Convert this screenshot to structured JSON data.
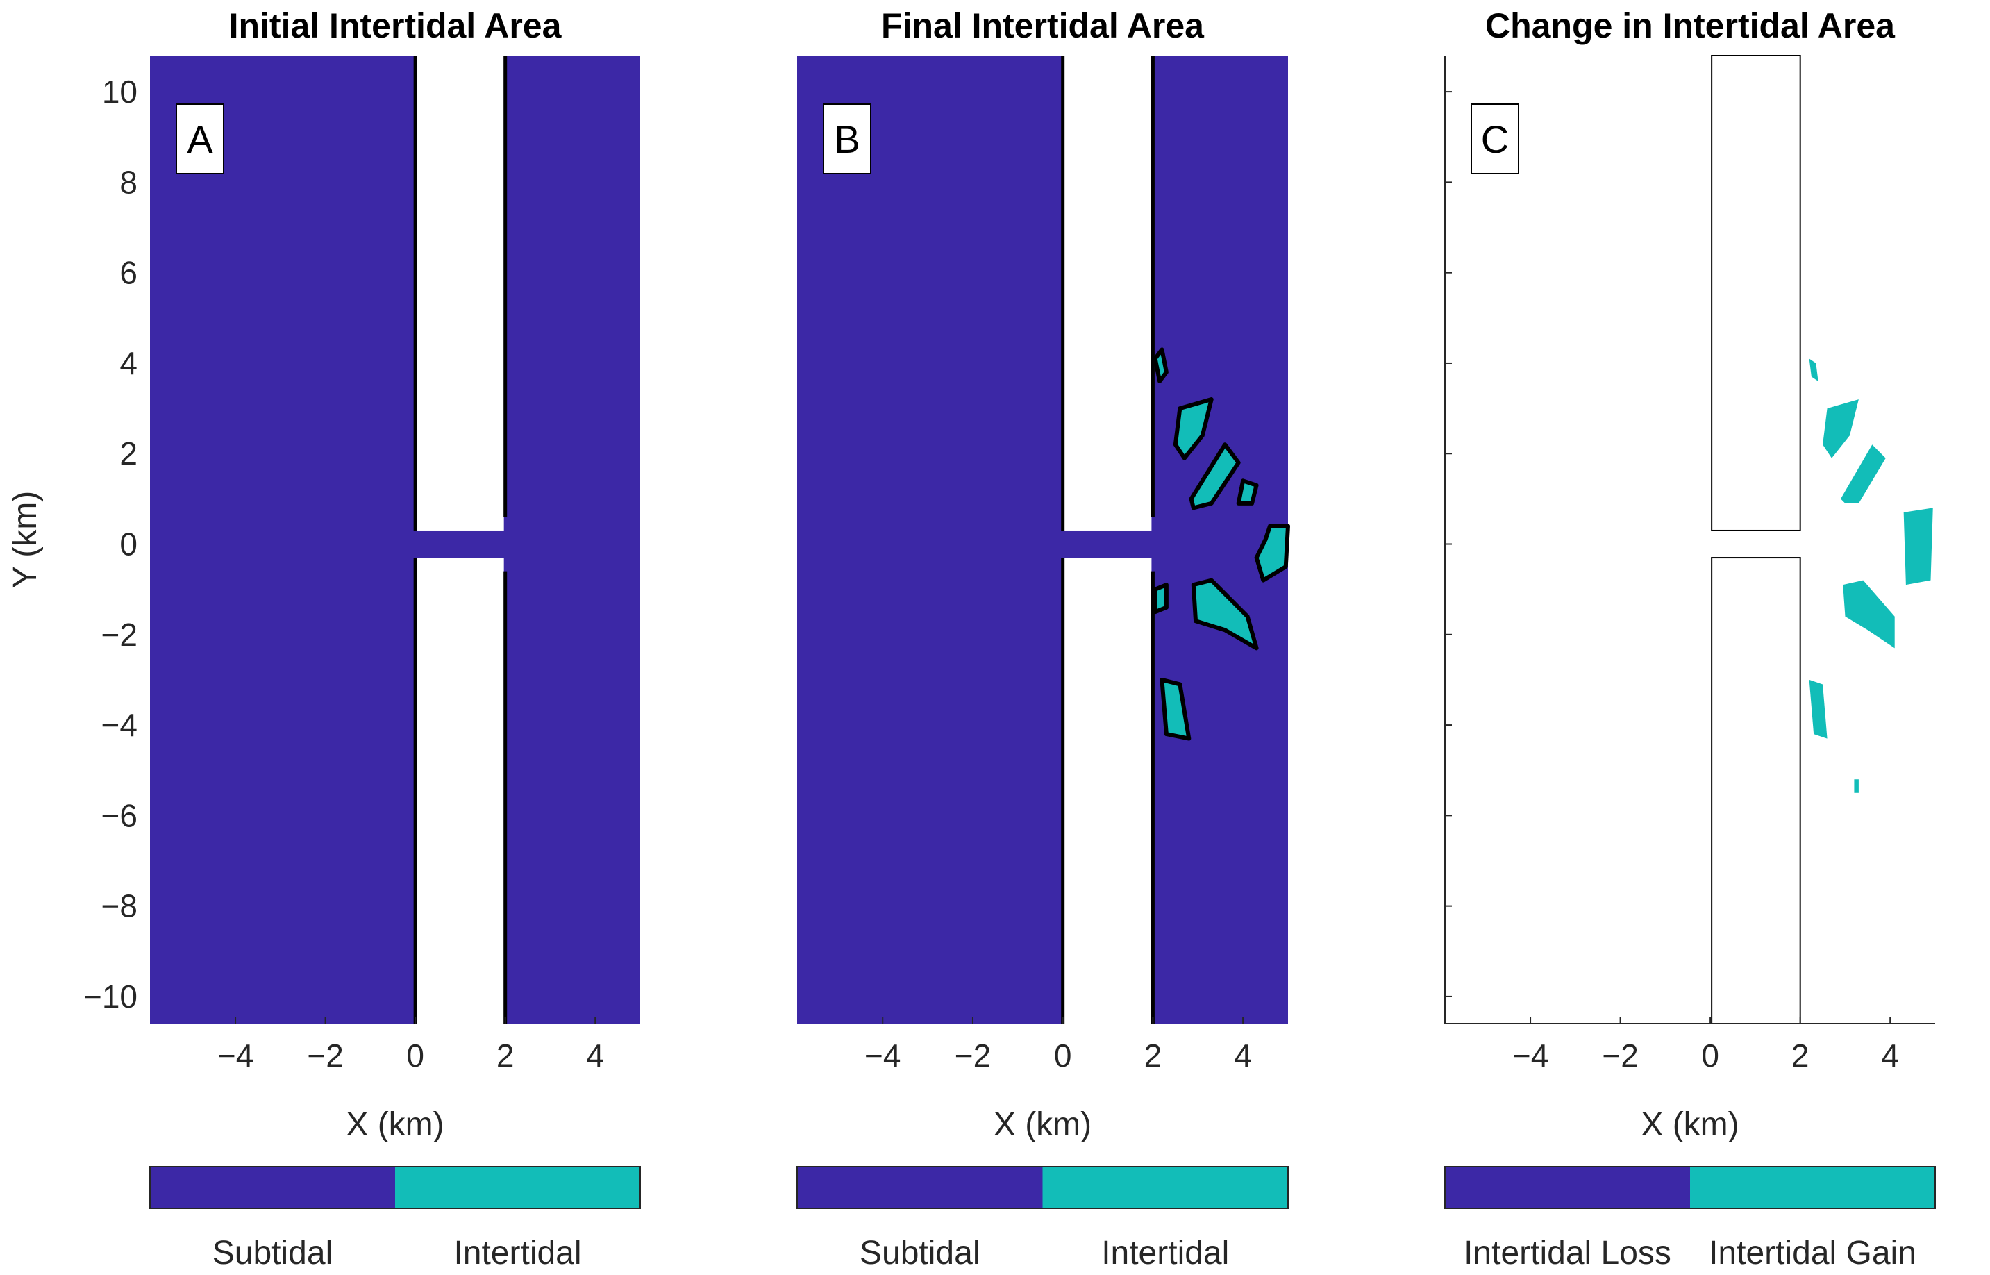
{
  "colors": {
    "subtidal": "#3c28a6",
    "intertidal": "#12bdb8",
    "outline": "#000000",
    "background": "#ffffff"
  },
  "chart_data": [
    {
      "type": "heatmap",
      "panel": "A",
      "title": "Initial Intertidal Area",
      "xlabel": "X (km)",
      "ylabel": "Y (km)",
      "xlim": [
        -5.9,
        5.0
      ],
      "ylim": [
        -10.6,
        10.8
      ],
      "xticks": [
        "−4",
        "−2",
        "0",
        "2",
        "4"
      ],
      "yticks": [
        "−10",
        "−8",
        "−6",
        "−4",
        "−2",
        "0",
        "2",
        "4",
        "6",
        "8",
        "10"
      ],
      "colorbar": [
        "Subtidal",
        "Intertidal"
      ],
      "intertidal_patches": []
    },
    {
      "type": "heatmap",
      "panel": "B",
      "title": "Final Intertidal Area",
      "xlabel": "X (km)",
      "ylabel": "",
      "xlim": [
        -5.9,
        5.0
      ],
      "ylim": [
        -10.6,
        10.8
      ],
      "xticks": [
        "−4",
        "−2",
        "0",
        "2",
        "4"
      ],
      "colorbar": [
        "Subtidal",
        "Intertidal"
      ],
      "intertidal_patches": [
        {
          "x": [
            2.05,
            2.2,
            2.3,
            2.15
          ],
          "y": [
            4.1,
            4.3,
            3.8,
            3.6
          ]
        },
        {
          "x": [
            2.6,
            3.3,
            3.1,
            2.7,
            2.5
          ],
          "y": [
            3.0,
            3.2,
            2.4,
            1.9,
            2.2
          ]
        },
        {
          "x": [
            2.85,
            3.6,
            3.9,
            3.3,
            2.9
          ],
          "y": [
            1.0,
            2.2,
            1.8,
            0.9,
            0.8
          ]
        },
        {
          "x": [
            4.0,
            4.3,
            4.2,
            3.9
          ],
          "y": [
            1.4,
            1.3,
            0.9,
            0.9
          ]
        },
        {
          "x": [
            4.6,
            5.0,
            4.95,
            4.45,
            4.3,
            4.5
          ],
          "y": [
            0.4,
            0.4,
            -0.5,
            -0.8,
            -0.3,
            0.1
          ]
        },
        {
          "x": [
            2.9,
            3.3,
            4.1,
            4.3,
            3.6,
            2.95
          ],
          "y": [
            -0.9,
            -0.8,
            -1.6,
            -2.3,
            -1.9,
            -1.7
          ]
        },
        {
          "x": [
            2.2,
            2.6,
            2.8,
            2.3
          ],
          "y": [
            -3.0,
            -3.1,
            -4.3,
            -4.2
          ]
        },
        {
          "x": [
            2.05,
            2.3,
            2.3,
            2.05
          ],
          "y": [
            -1.0,
            -0.9,
            -1.4,
            -1.5
          ]
        }
      ]
    },
    {
      "type": "heatmap",
      "panel": "C",
      "title": "Change in Intertidal Area",
      "xlabel": "X (km)",
      "ylabel": "",
      "xlim": [
        -5.9,
        5.0
      ],
      "ylim": [
        -10.6,
        10.8
      ],
      "xticks": [
        "−4",
        "−2",
        "0",
        "2",
        "4"
      ],
      "colorbar": [
        "Intertidal Loss",
        "Intertidal Gain"
      ],
      "intertidal_gain_patches": [
        {
          "x": [
            2.2,
            2.35,
            2.4,
            2.25
          ],
          "y": [
            4.1,
            4.0,
            3.6,
            3.7
          ]
        },
        {
          "x": [
            2.6,
            3.3,
            3.1,
            2.7,
            2.5
          ],
          "y": [
            3.0,
            3.2,
            2.4,
            1.9,
            2.2
          ]
        },
        {
          "x": [
            2.9,
            3.6,
            3.9,
            3.3,
            3.0
          ],
          "y": [
            1.0,
            2.2,
            1.9,
            0.9,
            0.9
          ]
        },
        {
          "x": [
            4.3,
            4.95,
            4.9,
            4.35
          ],
          "y": [
            0.7,
            0.8,
            -0.8,
            -0.9
          ]
        },
        {
          "x": [
            2.95,
            3.4,
            4.1,
            4.1,
            3.5,
            3.0
          ],
          "y": [
            -0.9,
            -0.8,
            -1.6,
            -2.3,
            -1.9,
            -1.6
          ]
        },
        {
          "x": [
            2.2,
            2.5,
            2.6,
            2.3
          ],
          "y": [
            -3.0,
            -3.1,
            -4.3,
            -4.2
          ]
        },
        {
          "x": [
            3.2,
            3.3,
            3.3,
            3.2
          ],
          "y": [
            -5.2,
            -5.2,
            -5.5,
            -5.5
          ]
        }
      ]
    }
  ]
}
